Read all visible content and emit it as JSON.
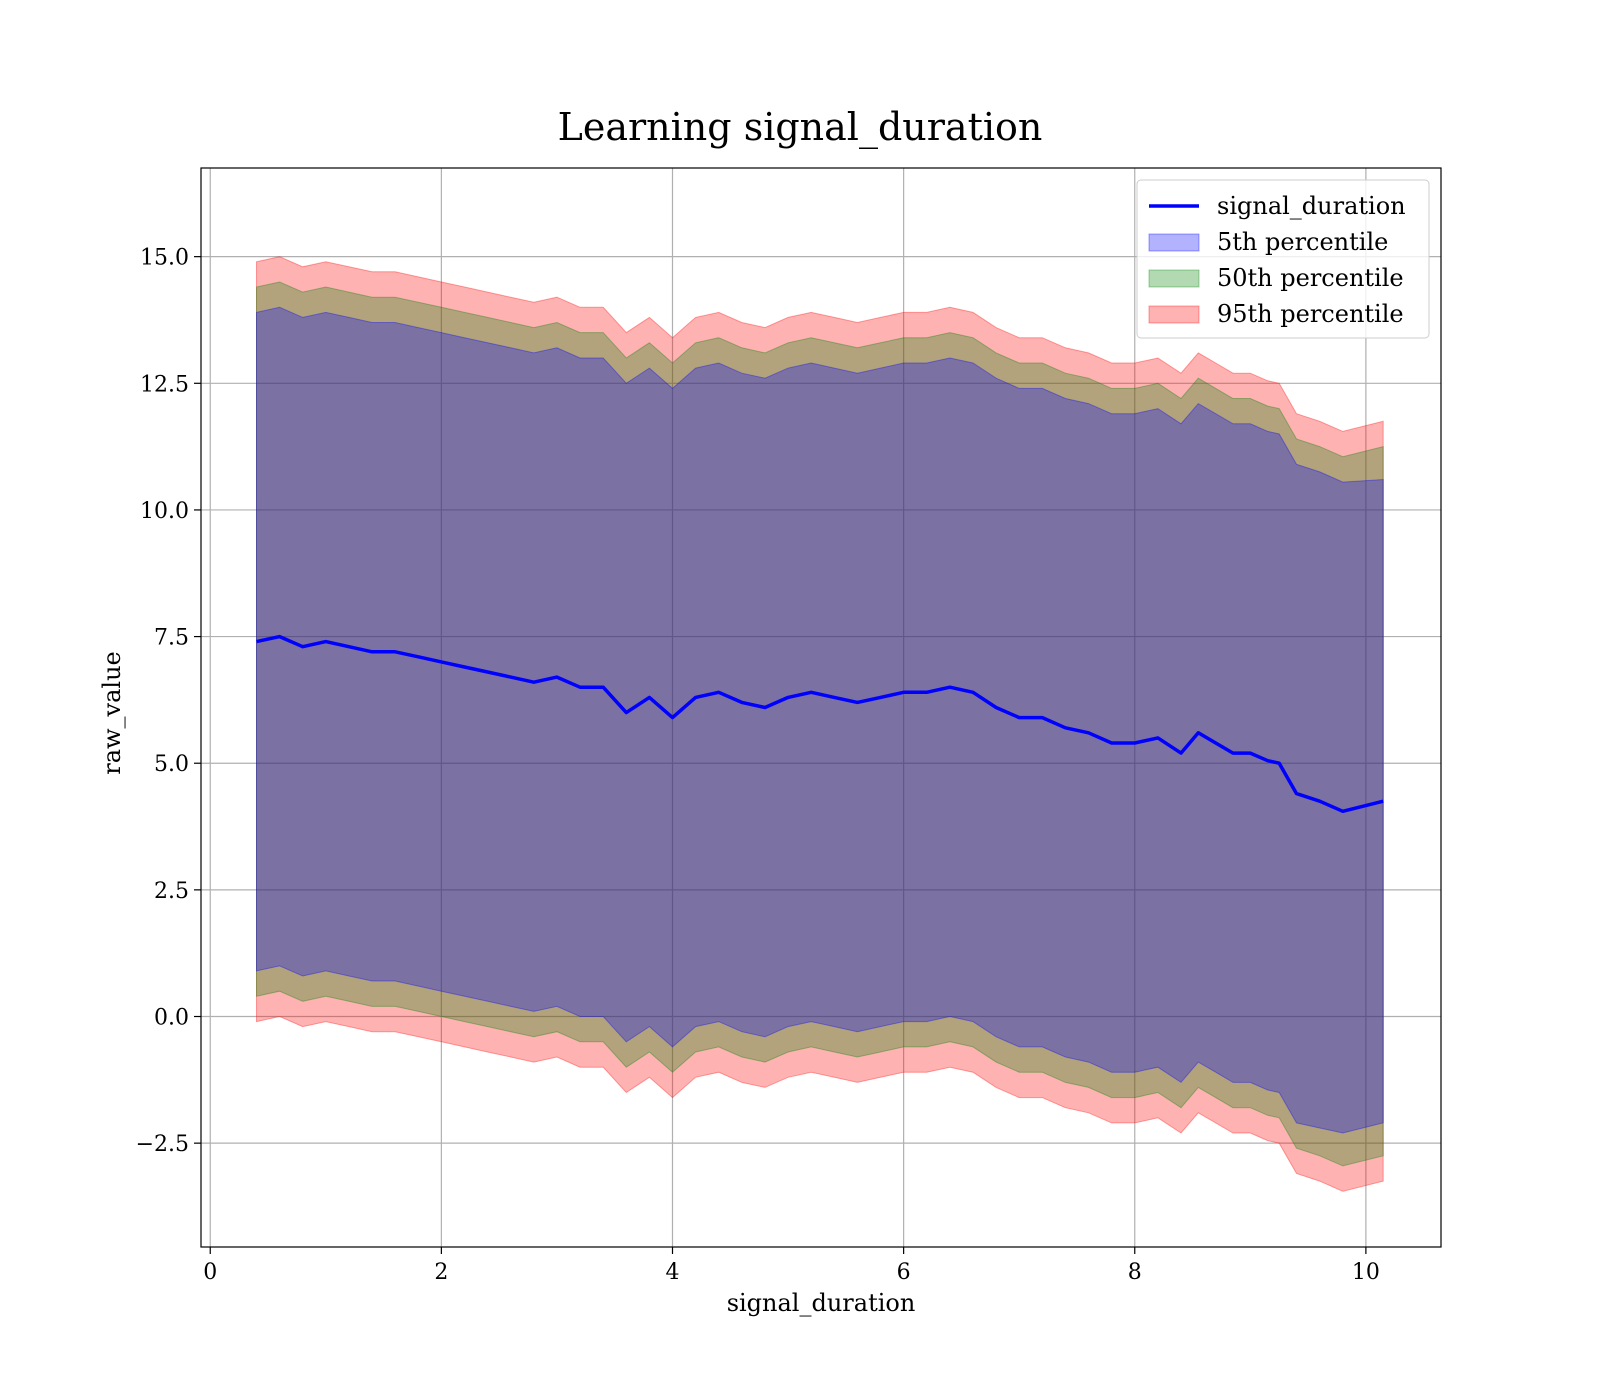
{
  "chart_data": {
    "type": "area",
    "title": "Learning signal_duration",
    "xlabel": "signal_duration",
    "ylabel": "raw_value",
    "xlim": [
      -0.08,
      10.65
    ],
    "ylim": [
      -4.55,
      16.75
    ],
    "xticks": [
      0,
      2,
      4,
      6,
      8,
      10
    ],
    "yticks": [
      -2.5,
      0.0,
      2.5,
      5.0,
      7.5,
      10.0,
      12.5,
      15.0
    ],
    "grid": true,
    "legend_position": "top-right",
    "x": [
      0.4,
      0.6,
      0.8,
      1.0,
      1.2,
      1.4,
      1.6,
      1.8,
      2.0,
      2.2,
      2.4,
      2.6,
      2.8,
      3.0,
      3.2,
      3.4,
      3.6,
      3.8,
      4.0,
      4.2,
      4.4,
      4.6,
      4.8,
      5.0,
      5.2,
      5.4,
      5.6,
      5.8,
      6.0,
      6.2,
      6.4,
      6.6,
      6.8,
      7.0,
      7.2,
      7.4,
      7.6,
      7.8,
      8.0,
      8.2,
      8.4,
      8.55,
      8.7,
      8.85,
      9.0,
      9.15,
      9.25,
      9.4,
      9.6,
      9.8,
      10.15
    ],
    "series": [
      {
        "name": "signal_duration",
        "kind": "line",
        "color": "#0000ff",
        "values": [
          7.4,
          7.5,
          7.3,
          7.4,
          7.3,
          7.2,
          7.2,
          7.1,
          7.0,
          6.9,
          6.8,
          6.7,
          6.6,
          6.7,
          6.5,
          6.5,
          6.0,
          6.3,
          5.9,
          6.3,
          6.4,
          6.2,
          6.1,
          6.3,
          6.4,
          6.3,
          6.2,
          6.3,
          6.4,
          6.4,
          6.5,
          6.4,
          6.1,
          5.9,
          5.9,
          5.7,
          5.6,
          5.4,
          5.4,
          5.5,
          5.2,
          5.6,
          5.4,
          5.2,
          5.2,
          5.05,
          5.0,
          4.4,
          4.25,
          4.05,
          4.25
        ]
      },
      {
        "name": "5th percentile",
        "kind": "band",
        "color": "#0000ff",
        "lower": [
          0.9,
          1.0,
          0.8,
          0.9,
          0.8,
          0.7,
          0.7,
          0.6,
          0.5,
          0.4,
          0.3,
          0.2,
          0.1,
          0.2,
          0.0,
          0.0,
          -0.5,
          -0.2,
          -0.6,
          -0.2,
          -0.1,
          -0.3,
          -0.4,
          -0.2,
          -0.1,
          -0.2,
          -0.3,
          -0.2,
          -0.1,
          -0.1,
          0.0,
          -0.1,
          -0.4,
          -0.6,
          -0.6,
          -0.8,
          -0.9,
          -1.1,
          -1.1,
          -1.0,
          -1.3,
          -0.9,
          -1.1,
          -1.3,
          -1.3,
          -1.45,
          -1.5,
          -2.1,
          -2.2,
          -2.3,
          -2.1
        ],
        "upper": [
          13.9,
          14.0,
          13.8,
          13.9,
          13.8,
          13.7,
          13.7,
          13.6,
          13.5,
          13.4,
          13.3,
          13.2,
          13.1,
          13.2,
          13.0,
          13.0,
          12.5,
          12.8,
          12.4,
          12.8,
          12.9,
          12.7,
          12.6,
          12.8,
          12.9,
          12.8,
          12.7,
          12.8,
          12.9,
          12.9,
          13.0,
          12.9,
          12.6,
          12.4,
          12.4,
          12.2,
          12.1,
          11.9,
          11.9,
          12.0,
          11.7,
          12.1,
          11.9,
          11.7,
          11.7,
          11.55,
          11.5,
          10.9,
          10.75,
          10.55,
          10.6
        ]
      },
      {
        "name": "50th percentile",
        "kind": "band",
        "color": "#008000",
        "lower": [
          0.4,
          0.5,
          0.3,
          0.4,
          0.3,
          0.2,
          0.2,
          0.1,
          0.0,
          -0.1,
          -0.2,
          -0.3,
          -0.4,
          -0.3,
          -0.5,
          -0.5,
          -1.0,
          -0.7,
          -1.1,
          -0.7,
          -0.6,
          -0.8,
          -0.9,
          -0.7,
          -0.6,
          -0.7,
          -0.8,
          -0.7,
          -0.6,
          -0.6,
          -0.5,
          -0.6,
          -0.9,
          -1.1,
          -1.1,
          -1.3,
          -1.4,
          -1.6,
          -1.6,
          -1.5,
          -1.8,
          -1.4,
          -1.6,
          -1.8,
          -1.8,
          -1.95,
          -2.0,
          -2.6,
          -2.75,
          -2.95,
          -2.75
        ],
        "upper": [
          14.4,
          14.5,
          14.3,
          14.4,
          14.3,
          14.2,
          14.2,
          14.1,
          14.0,
          13.9,
          13.8,
          13.7,
          13.6,
          13.7,
          13.5,
          13.5,
          13.0,
          13.3,
          12.9,
          13.3,
          13.4,
          13.2,
          13.1,
          13.3,
          13.4,
          13.3,
          13.2,
          13.3,
          13.4,
          13.4,
          13.5,
          13.4,
          13.1,
          12.9,
          12.9,
          12.7,
          12.6,
          12.4,
          12.4,
          12.5,
          12.2,
          12.6,
          12.4,
          12.2,
          12.2,
          12.05,
          12.0,
          11.4,
          11.25,
          11.05,
          11.25
        ]
      },
      {
        "name": "95th percentile",
        "kind": "band",
        "color": "#ff0000",
        "lower": [
          -0.1,
          0.0,
          -0.2,
          -0.1,
          -0.2,
          -0.3,
          -0.3,
          -0.4,
          -0.5,
          -0.6,
          -0.7,
          -0.8,
          -0.9,
          -0.8,
          -1.0,
          -1.0,
          -1.5,
          -1.2,
          -1.6,
          -1.2,
          -1.1,
          -1.3,
          -1.4,
          -1.2,
          -1.1,
          -1.2,
          -1.3,
          -1.2,
          -1.1,
          -1.1,
          -1.0,
          -1.1,
          -1.4,
          -1.6,
          -1.6,
          -1.8,
          -1.9,
          -2.1,
          -2.1,
          -2.0,
          -2.3,
          -1.9,
          -2.1,
          -2.3,
          -2.3,
          -2.45,
          -2.5,
          -3.1,
          -3.25,
          -3.45,
          -3.25
        ],
        "upper": [
          14.9,
          15.0,
          14.8,
          14.9,
          14.8,
          14.7,
          14.7,
          14.6,
          14.5,
          14.4,
          14.3,
          14.2,
          14.1,
          14.2,
          14.0,
          14.0,
          13.5,
          13.8,
          13.4,
          13.8,
          13.9,
          13.7,
          13.6,
          13.8,
          13.9,
          13.8,
          13.7,
          13.8,
          13.9,
          13.9,
          14.0,
          13.9,
          13.6,
          13.4,
          13.4,
          13.2,
          13.1,
          12.9,
          12.9,
          13.0,
          12.7,
          13.1,
          12.9,
          12.7,
          12.7,
          12.55,
          12.5,
          11.9,
          11.75,
          11.55,
          11.75
        ]
      }
    ]
  }
}
